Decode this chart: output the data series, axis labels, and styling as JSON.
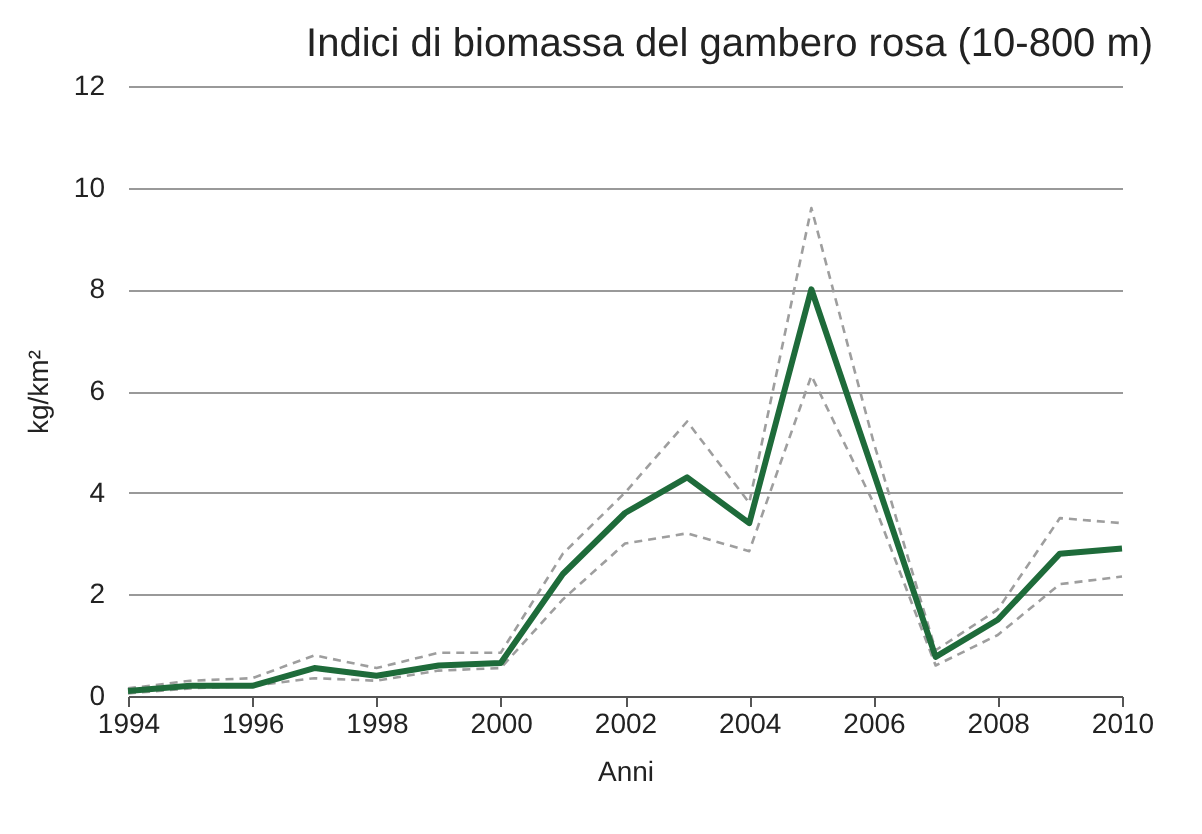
{
  "chart_data": {
    "type": "line",
    "title": "Indici di biomassa del gambero rosa (10-800 m)",
    "xlabel": "Anni",
    "ylabel": "kg/km²",
    "x": [
      1994,
      1995,
      1996,
      1997,
      1998,
      1999,
      2000,
      2001,
      2002,
      2003,
      2004,
      2005,
      2006,
      2007,
      2008,
      2009,
      2010
    ],
    "series": [
      {
        "color": "#9e9e9e",
        "line_style": "dashed",
        "values": [
          0.15,
          0.3,
          0.35,
          0.8,
          0.55,
          0.85,
          0.85,
          2.8,
          4.0,
          5.4,
          3.8,
          9.6,
          5.0,
          0.9,
          1.7,
          3.5,
          3.4
        ]
      },
      {
        "color": "#9e9e9e",
        "line_style": "dashed",
        "values": [
          0.05,
          0.15,
          0.2,
          0.35,
          0.3,
          0.5,
          0.55,
          1.9,
          3.0,
          3.2,
          2.85,
          6.3,
          3.8,
          0.6,
          1.2,
          2.2,
          2.35
        ]
      },
      {
        "color": "#1e6b3a",
        "line_style": "solid",
        "values": [
          0.1,
          0.2,
          0.2,
          0.55,
          0.4,
          0.6,
          0.65,
          2.4,
          3.6,
          4.3,
          3.4,
          8.0,
          4.4,
          0.77,
          1.5,
          2.8,
          2.9
        ]
      }
    ],
    "xlim": [
      1994,
      2010
    ],
    "xticks": [
      1994,
      1996,
      1998,
      2000,
      2002,
      2004,
      2006,
      2008,
      2010
    ],
    "ylim": [
      0,
      12
    ],
    "yticks": [
      0,
      2,
      4,
      6,
      8,
      10,
      12
    ],
    "grid": "y",
    "marker": "none"
  }
}
